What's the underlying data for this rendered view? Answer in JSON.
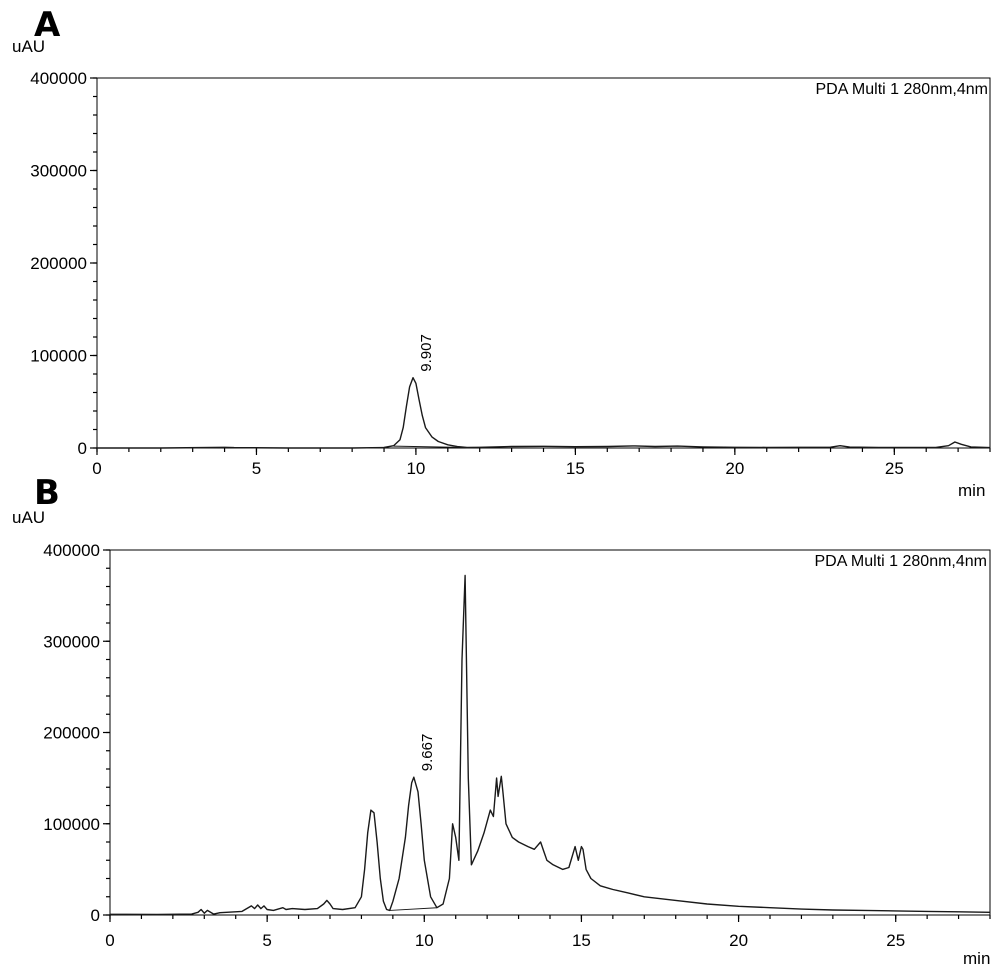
{
  "chart_data": [
    {
      "panel_label": "A",
      "type": "line",
      "ylabel": "uAU",
      "xlabel": "min",
      "legend_text": "PDA Multi 1 280nm,4nm",
      "xlim": [
        0,
        28
      ],
      "ylim": [
        0,
        400000
      ],
      "xticks": [
        0,
        5,
        10,
        15,
        20,
        25
      ],
      "yticks": [
        0,
        100000,
        200000,
        300000,
        400000
      ],
      "peak_labels": [
        {
          "x": 9.907,
          "text": "9.907"
        }
      ],
      "series": [
        {
          "x": [
            0,
            2,
            3.6,
            4,
            4.3,
            6,
            8,
            9,
            9.3,
            9.5,
            9.6,
            9.7,
            9.8,
            9.907,
            10.0,
            10.1,
            10.2,
            10.3,
            10.5,
            10.7,
            11.0,
            11.3,
            11.6,
            12,
            13,
            14,
            15,
            16,
            16.8,
            17.5,
            18.2,
            19,
            20,
            21,
            22,
            23.0,
            23.3,
            23.6,
            24.5,
            25.5,
            26.3,
            26.7,
            26.9,
            27.1,
            27.4,
            28
          ],
          "y": [
            0,
            0,
            500,
            800,
            400,
            0,
            0,
            500,
            2500,
            9000,
            22000,
            45000,
            66000,
            76000,
            70000,
            52000,
            35000,
            22000,
            12000,
            7000,
            3500,
            1500,
            500,
            800,
            1600,
            1800,
            1400,
            1600,
            2300,
            1600,
            2000,
            1200,
            800,
            700,
            800,
            900,
            2500,
            1000,
            600,
            500,
            700,
            2500,
            6500,
            4000,
            1200,
            400
          ]
        }
      ]
    },
    {
      "panel_label": "B",
      "type": "line",
      "ylabel": "uAU",
      "xlabel": "min",
      "legend_text": "PDA Multi 1 280nm,4nm",
      "xlim": [
        0,
        28
      ],
      "ylim": [
        0,
        400000
      ],
      "xticks": [
        0,
        5,
        10,
        15,
        20,
        25
      ],
      "yticks": [
        0,
        100000,
        200000,
        300000,
        400000
      ],
      "peak_labels": [
        {
          "x": 9.667,
          "text": "9.667"
        }
      ],
      "series": [
        {
          "x": [
            0,
            1.5,
            2.6,
            2.8,
            2.9,
            3.0,
            3.1,
            3.3,
            3.5,
            4.2,
            4.5,
            4.6,
            4.7,
            4.8,
            4.9,
            5.0,
            5.2,
            5.5,
            5.6,
            5.8,
            6.2,
            6.6,
            6.8,
            6.9,
            7.0,
            7.1,
            7.4,
            7.8,
            8.0,
            8.1,
            8.2,
            8.3,
            8.4,
            8.5,
            8.6,
            8.7,
            8.8,
            8.9,
            9.0,
            9.2,
            9.4,
            9.5,
            9.6,
            9.667,
            9.8,
            9.9,
            10.0,
            10.2,
            10.4,
            10.6,
            10.8,
            10.9,
            11.0,
            11.1,
            11.2,
            11.3,
            11.4,
            11.5,
            11.7,
            11.9,
            12.1,
            12.2,
            12.3,
            12.35,
            12.45,
            12.5,
            12.6,
            12.8,
            13.0,
            13.3,
            13.5,
            13.7,
            13.8,
            13.9,
            14.1,
            14.4,
            14.6,
            14.8,
            14.9,
            15.0,
            15.05,
            15.15,
            15.3,
            15.6,
            16.0,
            16.5,
            17.0,
            18.0,
            19.0,
            20.0,
            21.0,
            22.0,
            23.0,
            24.0,
            25.0,
            26.0,
            27.0,
            28.0
          ],
          "y": [
            800,
            500,
            1000,
            3000,
            6000,
            2000,
            5000,
            1000,
            2500,
            4000,
            10000,
            7000,
            11000,
            7000,
            10000,
            6000,
            5000,
            8000,
            6000,
            7000,
            6000,
            7000,
            12000,
            16000,
            12000,
            7000,
            6000,
            8000,
            20000,
            50000,
            90000,
            115000,
            112000,
            80000,
            40000,
            15000,
            6000,
            5000,
            15000,
            40000,
            85000,
            120000,
            145000,
            151000,
            135000,
            100000,
            60000,
            20000,
            8000,
            12000,
            40000,
            100000,
            85000,
            60000,
            280000,
            372000,
            150000,
            55000,
            70000,
            90000,
            115000,
            108000,
            150000,
            130000,
            152000,
            135000,
            100000,
            85000,
            80000,
            75000,
            72000,
            80000,
            70000,
            60000,
            55000,
            50000,
            52000,
            75000,
            60000,
            75000,
            72000,
            50000,
            40000,
            32000,
            28000,
            24000,
            20000,
            16000,
            12000,
            9500,
            8000,
            6500,
            5500,
            5000,
            4500,
            4000,
            3500,
            3000
          ]
        }
      ]
    }
  ]
}
